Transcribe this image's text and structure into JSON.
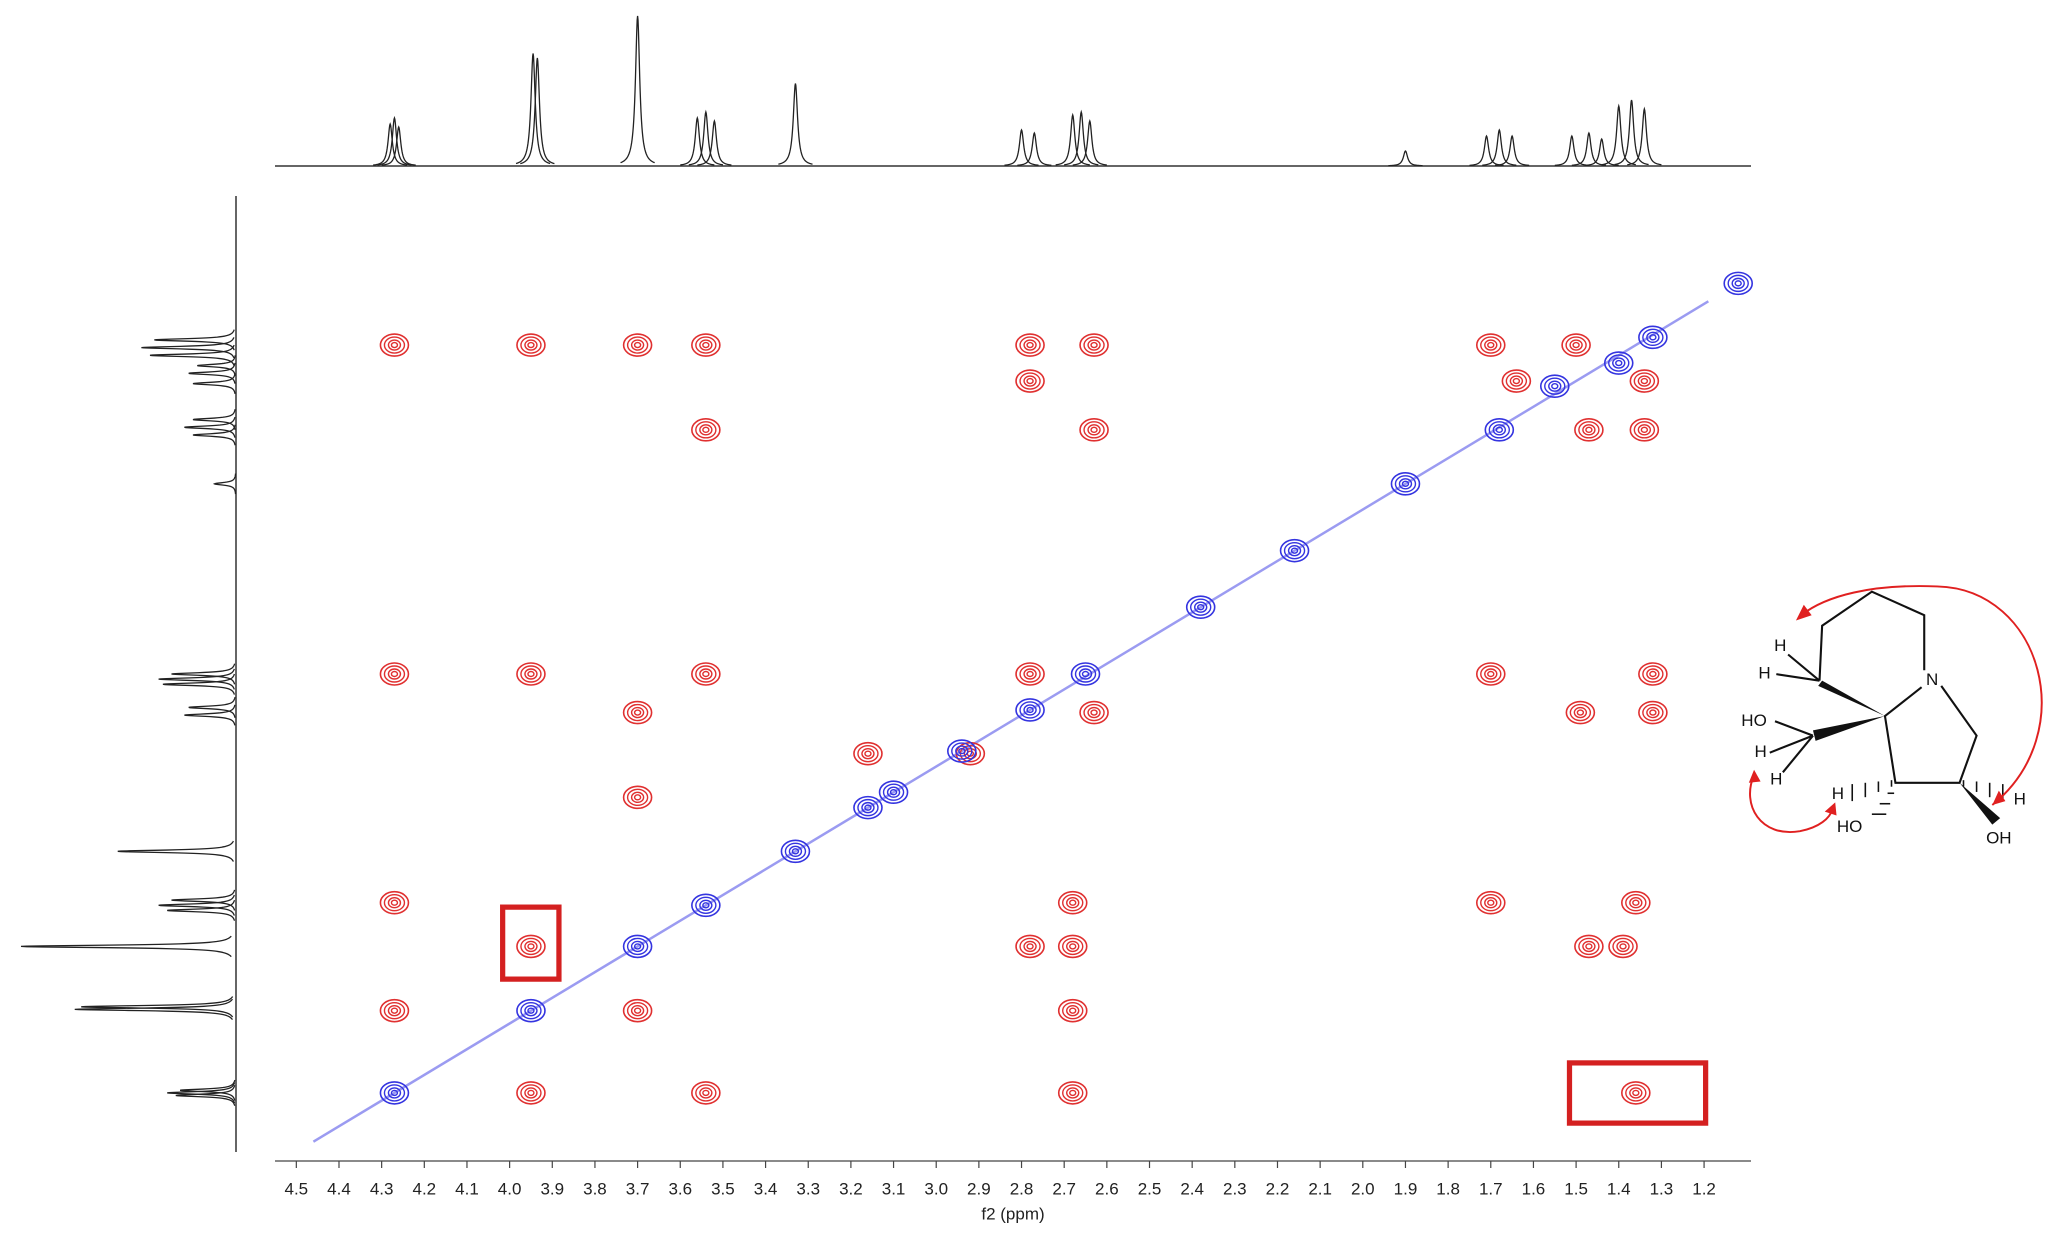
{
  "chart_data": {
    "type": "scatter",
    "x_label": "f2 (ppm)",
    "xlim": [
      4.55,
      1.09
    ],
    "ylim": [
      0.78,
      4.5
    ],
    "xticks": [
      4.5,
      4.4,
      4.3,
      4.2,
      4.1,
      {
        "value": 4,
        "label": "4.0"
      },
      3.9,
      3.8,
      3.7,
      3.6,
      3.5,
      3.4,
      3.3,
      3.2,
      3.1,
      {
        "value": 3,
        "label": "3.0"
      },
      2.9,
      2.8,
      2.7,
      2.6,
      2.5,
      2.4,
      2.3,
      2.2,
      2.1,
      {
        "value": 2,
        "label": "2.0"
      },
      1.9,
      1.8,
      1.7,
      1.6,
      1.5,
      1.4,
      1.3,
      1.2
    ],
    "series": [
      {
        "color": "#e03030",
        "x": [
          4.27,
          3.95,
          3.7,
          3.54,
          2.78,
          2.63,
          1.7,
          1.5,
          2.78,
          1.64,
          1.34,
          3.54,
          2.63,
          1.47,
          1.34,
          4.27,
          3.95,
          3.54,
          2.78,
          1.7,
          1.32,
          3.7,
          2.63,
          1.49,
          1.32,
          3.16,
          2.92,
          3.7,
          4.27,
          2.68,
          1.7,
          1.36,
          3.95,
          2.78,
          2.68,
          1.47,
          1.39,
          4.27,
          3.7,
          2.68,
          3.95,
          3.54,
          2.68,
          1.36
        ],
        "y": [
          1.36,
          1.36,
          1.36,
          1.36,
          1.36,
          1.36,
          1.36,
          1.36,
          1.5,
          1.5,
          1.5,
          1.69,
          1.69,
          1.69,
          1.69,
          2.64,
          2.64,
          2.64,
          2.64,
          2.64,
          2.64,
          2.79,
          2.79,
          2.79,
          2.79,
          2.95,
          2.95,
          3.12,
          3.53,
          3.53,
          3.53,
          3.53,
          3.7,
          3.7,
          3.7,
          3.7,
          3.7,
          3.95,
          3.95,
          3.95,
          4.27,
          4.27,
          4.27,
          4.27
        ]
      },
      {
        "color": "#3434e0",
        "x": [
          4.27,
          3.95,
          3.7,
          3.54,
          3.33,
          3.16,
          3.1,
          2.94,
          2.78,
          2.65,
          2.38,
          2.16,
          1.9,
          1.68,
          1.55,
          1.4,
          1.32,
          1.12
        ],
        "y": [
          4.27,
          3.95,
          3.7,
          3.54,
          3.33,
          3.16,
          3.1,
          2.94,
          2.78,
          2.64,
          2.38,
          2.16,
          1.9,
          1.69,
          1.52,
          1.43,
          1.33,
          1.12
        ]
      }
    ],
    "projection": {
      "x": [
        4.28,
        4.27,
        4.26,
        3.945,
        3.935,
        3.7,
        3.56,
        3.54,
        3.52,
        3.33,
        2.8,
        2.77,
        2.68,
        2.66,
        2.64,
        1.9,
        1.71,
        1.68,
        1.65,
        1.51,
        1.47,
        1.44,
        1.4,
        1.37,
        1.34
      ],
      "values": [
        28,
        32,
        26,
        75,
        72,
        100,
        32,
        36,
        30,
        55,
        24,
        22,
        34,
        36,
        30,
        10,
        20,
        24,
        20,
        20,
        22,
        18,
        40,
        44,
        38
      ]
    }
  },
  "structure": {
    "labels": [
      "H",
      "H",
      "HO",
      "H",
      "H",
      "H",
      "HO",
      "N",
      "H",
      "OH"
    ]
  }
}
